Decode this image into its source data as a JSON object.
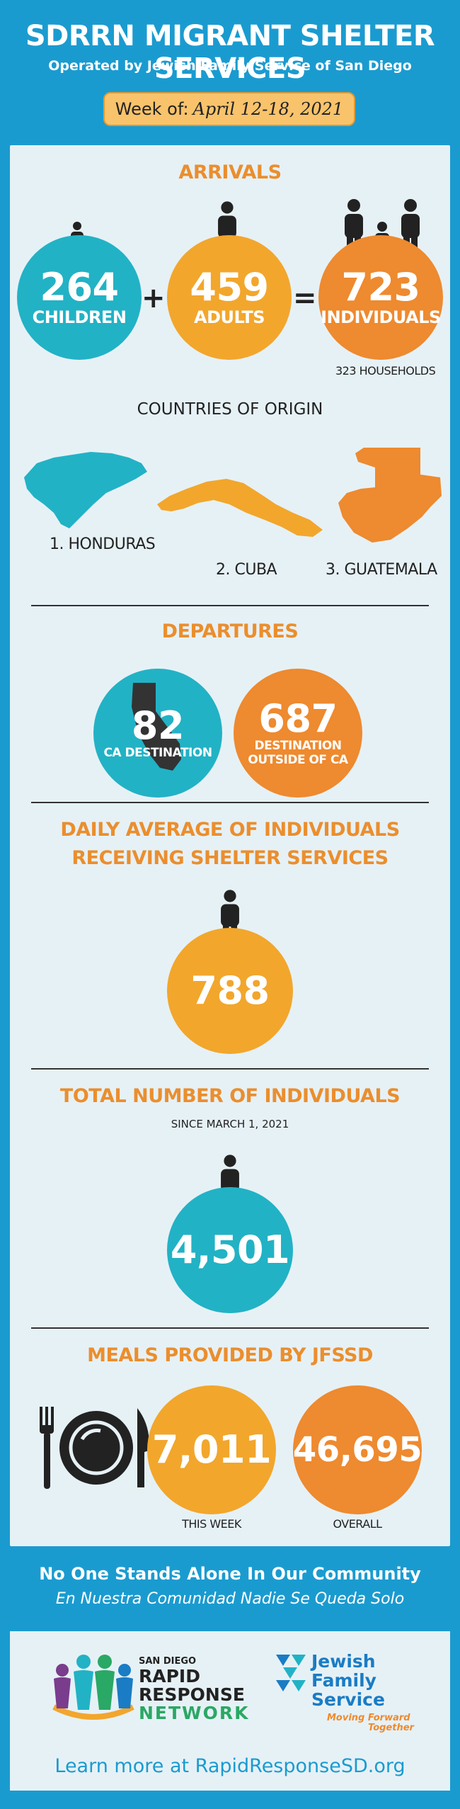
{
  "header": {
    "title": "SDRRN MIGRANT SHELTER SERVICES",
    "subtitle": "Operated by Jewish Family Service of San Diego",
    "week_label": "Week of:",
    "week_dates": "April 12-18, 2021"
  },
  "arrivals": {
    "title": "ARRIVALS",
    "children_value": "264",
    "children_label": "CHILDREN",
    "plus": "+",
    "adults_value": "459",
    "adults_label": "ADULTS",
    "equals": "=",
    "individuals_value": "723",
    "individuals_label": "INDIVIDUALS",
    "households": "323 HOUSEHOLDS"
  },
  "origin": {
    "title": "COUNTRIES OF ORIGIN",
    "countries": [
      "1. HONDURAS",
      "2. CUBA",
      "3. GUATEMALA"
    ]
  },
  "departures": {
    "title": "DEPARTURES",
    "ca_value": "82",
    "ca_label": "CA DESTINATION",
    "outside_value": "687",
    "outside_label_1": "DESTINATION",
    "outside_label_2": "OUTSIDE OF CA"
  },
  "daily": {
    "title_1": "DAILY AVERAGE OF INDIVIDUALS",
    "title_2": "RECEIVING SHELTER SERVICES",
    "value": "788"
  },
  "total": {
    "title": "TOTAL NUMBER OF INDIVIDUALS",
    "since": "SINCE MARCH 1, 2021",
    "value": "4,501"
  },
  "meals": {
    "title": "MEALS PROVIDED BY JFSSD",
    "week_value": "7,011",
    "week_label": "THIS WEEK",
    "overall_value": "46,695",
    "overall_label": "OVERALL"
  },
  "footer": {
    "tagline_en": "No One Stands Alone In Our Community",
    "tagline_es": "En Nuestra Comunidad Nadie Se Queda Solo",
    "rrn_small": "SAN DIEGO",
    "rrn_line1": "RAPID",
    "rrn_line2": "RESPONSE",
    "rrn_line3": "NETWORK",
    "jfs_line1": "Jewish",
    "jfs_line2": "Family",
    "jfs_line3": "Service",
    "jfs_tag1": "Moving Forward",
    "jfs_tag2": "Together",
    "learn_more": "Learn more at RapidResponseSD.org"
  },
  "colors": {
    "background": "#1a9bd0",
    "panel": "#e6f1f6",
    "teal": "#22b2c5",
    "yellow": "#f2a62c",
    "orange": "#ee8a2f",
    "title_orange": "#eb8e2d"
  },
  "icons": [
    "person-icon",
    "family-icon",
    "honduras-map-icon",
    "cuba-map-icon",
    "guatemala-map-icon",
    "california-map-icon",
    "fork-plate-knife-icon",
    "rrn-logo",
    "jfs-logo"
  ]
}
